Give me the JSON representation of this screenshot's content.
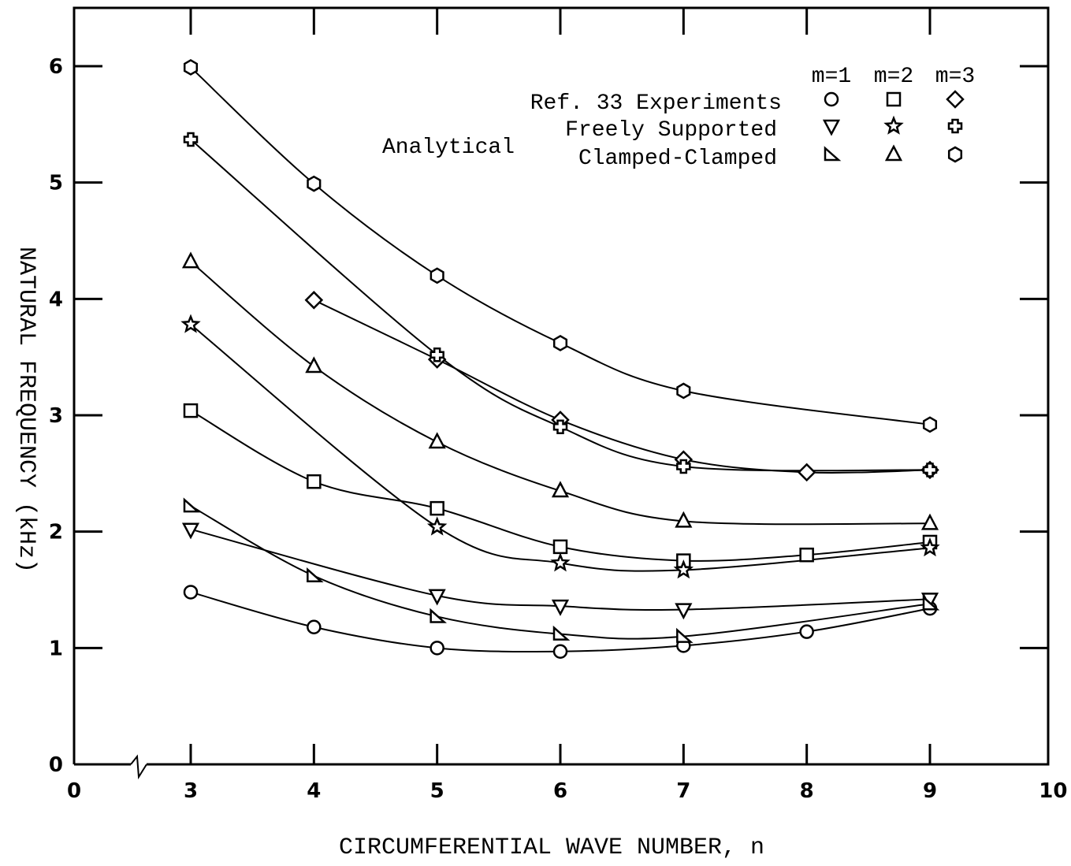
{
  "chart_data": {
    "type": "line",
    "xlabel": "CIRCUMFERENTIAL WAVE NUMBER, n",
    "ylabel": "NATURAL FREQUENCY (kHz)",
    "xlim": [
      0,
      10
    ],
    "ylim": [
      0,
      6.5
    ],
    "x_axis_break": "between 0 and 3",
    "x_ticks": [
      0,
      3,
      4,
      5,
      6,
      7,
      8,
      9,
      10
    ],
    "y_ticks": [
      0,
      1,
      2,
      3,
      4,
      5,
      6
    ],
    "grid": false,
    "legend": {
      "placement": "top-right",
      "column_headers": [
        "m=1",
        "m=2",
        "m=3"
      ],
      "group_label": "Analytical",
      "row_labels": [
        "Ref. 33 Experiments",
        "Freely Supported",
        "Clamped-Clamped"
      ]
    },
    "series": [
      {
        "group": "experiment",
        "m": 1,
        "marker": "circle",
        "x": [
          3,
          4,
          5,
          6,
          7,
          8,
          9
        ],
        "y": [
          1.48,
          1.18,
          1.0,
          0.97,
          1.02,
          1.14,
          1.34
        ]
      },
      {
        "group": "experiment",
        "m": 2,
        "marker": "square",
        "x": [
          3,
          4,
          5,
          6,
          7,
          8,
          9
        ],
        "y": [
          3.04,
          2.43,
          2.2,
          1.87,
          1.75,
          1.8,
          1.91
        ]
      },
      {
        "group": "experiment",
        "m": 3,
        "marker": "diamond",
        "x": [
          4,
          5,
          6,
          7,
          8,
          9
        ],
        "y": [
          3.99,
          3.48,
          2.96,
          2.62,
          2.51,
          2.53
        ]
      },
      {
        "group": "freely-supported",
        "m": 1,
        "marker": "triangle-down",
        "x": [
          3,
          5,
          6,
          7,
          9
        ],
        "y": [
          2.02,
          1.45,
          1.36,
          1.33,
          1.42
        ]
      },
      {
        "group": "freely-supported",
        "m": 2,
        "marker": "star",
        "x": [
          3,
          5,
          6,
          7,
          9
        ],
        "y": [
          3.78,
          2.04,
          1.73,
          1.67,
          1.86
        ]
      },
      {
        "group": "freely-supported",
        "m": 3,
        "marker": "cross",
        "x": [
          3,
          5,
          6,
          7,
          9
        ],
        "y": [
          5.37,
          3.52,
          2.9,
          2.56,
          2.53
        ]
      },
      {
        "group": "clamped-clamped",
        "m": 1,
        "marker": "triangle-right",
        "x": [
          3,
          4,
          5,
          6,
          7,
          9
        ],
        "y": [
          2.22,
          1.62,
          1.27,
          1.12,
          1.1,
          1.38
        ]
      },
      {
        "group": "clamped-clamped",
        "m": 2,
        "marker": "triangle-up",
        "x": [
          3,
          4,
          5,
          6,
          7,
          9
        ],
        "y": [
          4.32,
          3.42,
          2.77,
          2.35,
          2.09,
          2.07
        ]
      },
      {
        "group": "clamped-clamped",
        "m": 3,
        "marker": "hexagon",
        "x": [
          3,
          4,
          5,
          6,
          7,
          9
        ],
        "y": [
          5.99,
          4.99,
          4.2,
          3.62,
          3.21,
          2.92
        ]
      }
    ]
  }
}
